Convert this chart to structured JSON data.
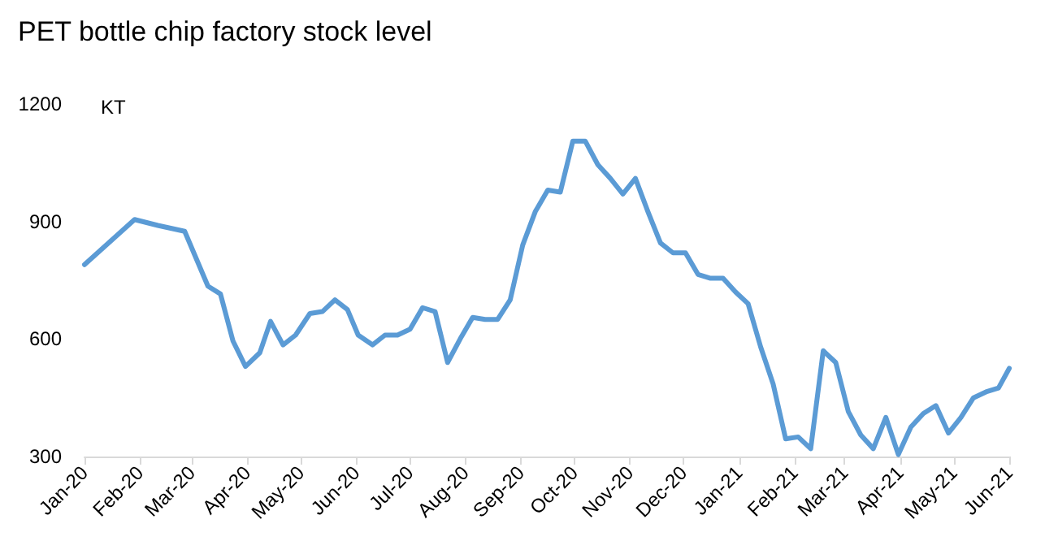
{
  "chart_data": {
    "type": "line",
    "title": "PET bottle chip factory stock level",
    "ylabel": "KT",
    "x": [
      "2020-01-01",
      "2020-01-29",
      "2020-02-11",
      "2020-02-26",
      "2020-03-10",
      "2020-03-17",
      "2020-03-24",
      "2020-03-31",
      "2020-04-08",
      "2020-04-14",
      "2020-04-21",
      "2020-04-28",
      "2020-05-06",
      "2020-05-13",
      "2020-05-20",
      "2020-05-27",
      "2020-06-02",
      "2020-06-10",
      "2020-06-17",
      "2020-06-24",
      "2020-07-01",
      "2020-07-08",
      "2020-07-15",
      "2020-07-22",
      "2020-07-29",
      "2020-08-05",
      "2020-08-12",
      "2020-08-19",
      "2020-08-26",
      "2020-09-02",
      "2020-09-09",
      "2020-09-16",
      "2020-09-23",
      "2020-09-30",
      "2020-10-07",
      "2020-10-14",
      "2020-10-21",
      "2020-10-28",
      "2020-11-04",
      "2020-11-11",
      "2020-11-18",
      "2020-11-25",
      "2020-12-02",
      "2020-12-09",
      "2020-12-16",
      "2020-12-23",
      "2020-12-30",
      "2021-01-06",
      "2021-01-13",
      "2021-01-20",
      "2021-01-27",
      "2021-02-03",
      "2021-02-10",
      "2021-02-17",
      "2021-02-24",
      "2021-03-03",
      "2021-03-10",
      "2021-03-17",
      "2021-03-24",
      "2021-03-31",
      "2021-04-07",
      "2021-04-14",
      "2021-04-21",
      "2021-04-28",
      "2021-05-05",
      "2021-05-12",
      "2021-05-19",
      "2021-05-26",
      "2021-06-01"
    ],
    "series": [
      {
        "color": "#5b9bd5",
        "values": [
          790,
          905,
          890,
          875,
          735,
          715,
          595,
          530,
          565,
          645,
          585,
          610,
          665,
          670,
          700,
          675,
          610,
          585,
          610,
          610,
          625,
          680,
          670,
          540,
          600,
          655,
          650,
          650,
          700,
          840,
          925,
          980,
          975,
          1105,
          1105,
          1045,
          1010,
          970,
          1010,
          925,
          845,
          820,
          820,
          765,
          755,
          755,
          720,
          690,
          580,
          485,
          345,
          350,
          320,
          570,
          540,
          415,
          355,
          320,
          400,
          305,
          375,
          410,
          430,
          360,
          400,
          450,
          465,
          475,
          525
        ]
      }
    ],
    "xlim": [
      "2020-01-01",
      "2021-06-01"
    ],
    "xticks": [
      {
        "value": "2020-01-01",
        "label": "Jan-20"
      },
      {
        "value": "2020-02-01",
        "label": "Feb-20"
      },
      {
        "value": "2020-03-01",
        "label": "Mar-20"
      },
      {
        "value": "2020-04-01",
        "label": "Apr-20"
      },
      {
        "value": "2020-05-01",
        "label": "May-20"
      },
      {
        "value": "2020-06-01",
        "label": "Jun-20"
      },
      {
        "value": "2020-07-01",
        "label": "Jul-20"
      },
      {
        "value": "2020-08-01",
        "label": "Aug-20"
      },
      {
        "value": "2020-09-01",
        "label": "Sep-20"
      },
      {
        "value": "2020-10-01",
        "label": "Oct-20"
      },
      {
        "value": "2020-11-01",
        "label": "Nov-20"
      },
      {
        "value": "2020-12-01",
        "label": "Dec-20"
      },
      {
        "value": "2021-01-01",
        "label": "Jan-21"
      },
      {
        "value": "2021-02-01",
        "label": "Feb-21"
      },
      {
        "value": "2021-03-01",
        "label": "Mar-21"
      },
      {
        "value": "2021-04-01",
        "label": "Apr-21"
      },
      {
        "value": "2021-05-01",
        "label": "May-21"
      },
      {
        "value": "2021-06-01",
        "label": "Jun-21"
      }
    ],
    "ylim": [
      300,
      1200
    ],
    "yticks": [
      300,
      600,
      900,
      1200
    ],
    "grid": false,
    "marker": "none",
    "line_style": "solid"
  }
}
